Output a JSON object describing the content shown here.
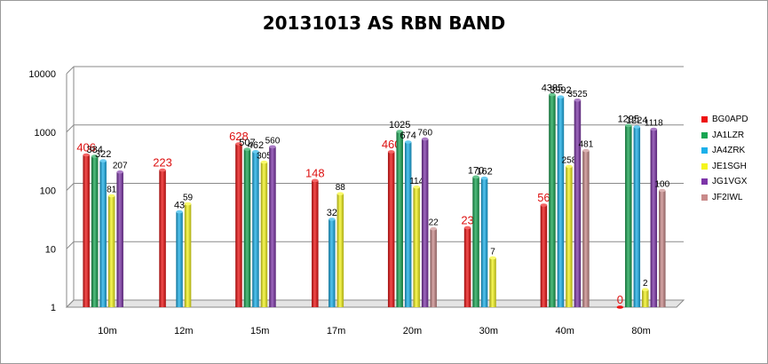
{
  "chart_data": {
    "type": "bar",
    "title": "20131013 AS RBN BAND",
    "xlabel": "",
    "ylabel": "",
    "yscale": "log",
    "ylim": [
      1,
      10000
    ],
    "y_ticks": [
      "1",
      "10",
      "100",
      "1000",
      "10000"
    ],
    "grid": true,
    "legend_position": "right",
    "categories": [
      "10m",
      "12m",
      "15m",
      "17m",
      "20m",
      "30m",
      "40m",
      "80m"
    ],
    "series": [
      {
        "name": "BG0APD",
        "color": "#ee1111",
        "values": [
          406,
          223,
          628,
          148,
          460,
          23,
          56,
          0
        ]
      },
      {
        "name": "JA1LZR",
        "color": "#17a552",
        "values": [
          384,
          null,
          507,
          null,
          1025,
          170,
          4385,
          1295
        ]
      },
      {
        "name": "JA4ZRK",
        "color": "#1ab0ea",
        "values": [
          322,
          43,
          462,
          32,
          674,
          162,
          3992,
          1224
        ]
      },
      {
        "name": "JE1SGH",
        "color": "#f5f51d",
        "values": [
          81,
          59,
          305,
          88,
          114,
          7,
          258,
          2
        ]
      },
      {
        "name": "JG1VGX",
        "color": "#7d35a8",
        "values": [
          207,
          null,
          560,
          null,
          760,
          null,
          3525,
          1118
        ]
      },
      {
        "name": "JF2IWL",
        "color": "#c98a8a",
        "values": [
          null,
          null,
          null,
          null,
          22,
          null,
          481,
          100
        ]
      }
    ]
  }
}
